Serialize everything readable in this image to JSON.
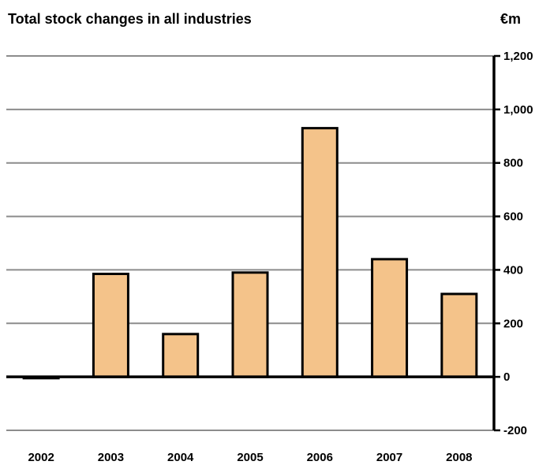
{
  "chart_data": {
    "type": "bar",
    "title": "Total stock changes in all industries",
    "unit": "€m",
    "categories": [
      "2002",
      "2003",
      "2004",
      "2005",
      "2006",
      "2007",
      "2008"
    ],
    "values": [
      -5,
      385,
      160,
      390,
      930,
      440,
      310
    ],
    "ylim": [
      -200,
      1200
    ],
    "yticks": [
      -200,
      0,
      200,
      400,
      600,
      800,
      1000,
      1200
    ],
    "ytick_labels": [
      "-200",
      "0",
      "200",
      "400",
      "600",
      "800",
      "1,000",
      "1,200"
    ],
    "xlabel": "",
    "ylabel": "",
    "grid": true,
    "axis_position": "right",
    "bar_color": "#f4c38a",
    "bar_edge_color": "#000000"
  }
}
